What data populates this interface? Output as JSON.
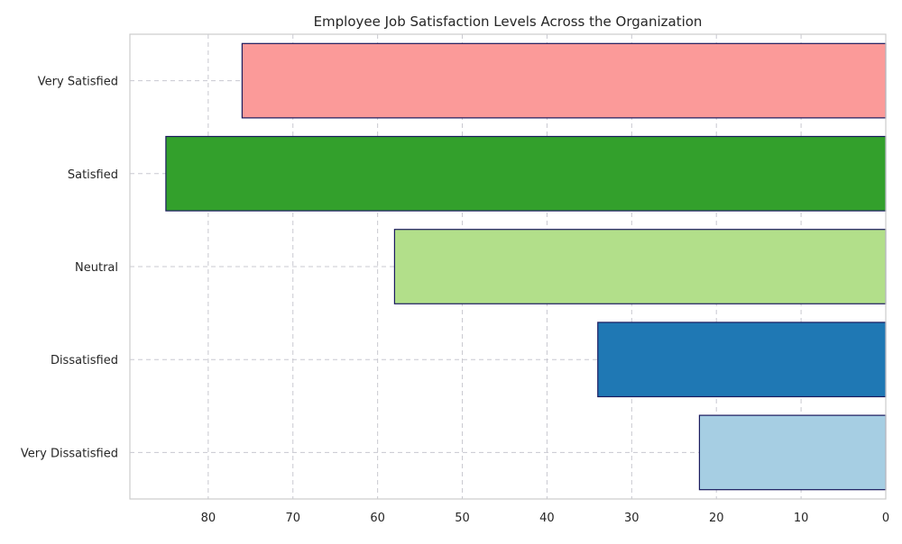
{
  "chart_data": {
    "type": "bar",
    "orientation": "horizontal",
    "x_axis_inverted": true,
    "title": "Employee Job Satisfaction Levels Across the Organization",
    "xlabel": "",
    "ylabel": "",
    "categories": [
      "Very Satisfied",
      "Satisfied",
      "Neutral",
      "Dissatisfied",
      "Very Dissatisfied"
    ],
    "values": [
      76,
      85,
      58,
      34,
      22
    ],
    "colors": [
      "#fb9a99",
      "#33a02c",
      "#b2df8a",
      "#1f78b4",
      "#a6cee3"
    ],
    "edge_color": "#1a1a5e",
    "xlim": [
      0,
      89.25
    ],
    "xticks": [
      80,
      70,
      60,
      50,
      40,
      30,
      20,
      10,
      0
    ],
    "grid": true,
    "legend": "none"
  }
}
